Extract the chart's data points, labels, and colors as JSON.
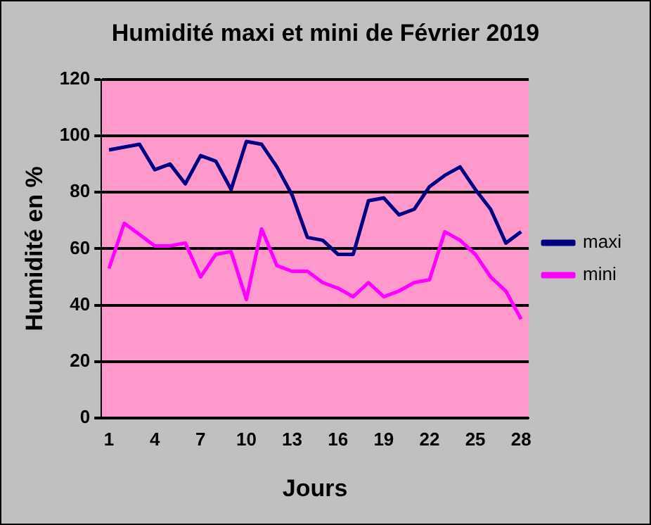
{
  "chart_data": {
    "type": "line",
    "title": "Humidité maxi et mini de Février 2019",
    "xlabel": "Jours",
    "ylabel": "Humidité en %",
    "categories": [
      "1",
      null,
      null,
      "4",
      null,
      null,
      "7",
      null,
      null,
      "10",
      null,
      null,
      "13",
      null,
      null,
      "16",
      null,
      null,
      "19",
      null,
      null,
      "22",
      null,
      null,
      "25",
      null,
      null,
      "28"
    ],
    "series": [
      {
        "name": "maxi",
        "color": "#000080",
        "values": [
          95,
          96,
          97,
          88,
          90,
          83,
          93,
          91,
          81,
          98,
          97,
          89,
          79,
          64,
          63,
          58,
          58,
          77,
          78,
          72,
          74,
          82,
          86,
          89,
          81,
          74,
          62,
          66
        ]
      },
      {
        "name": "mini",
        "color": "#ff00ff",
        "values": [
          53,
          69,
          65,
          61,
          61,
          62,
          50,
          58,
          59,
          42,
          67,
          54,
          52,
          52,
          48,
          46,
          43,
          48,
          43,
          45,
          48,
          49,
          66,
          63,
          58,
          50,
          45,
          35
        ]
      }
    ],
    "ylim": [
      0,
      120
    ],
    "yticks": [
      0,
      20,
      40,
      60,
      80,
      100,
      120
    ],
    "grid": "y",
    "legend": "right",
    "marker": "none",
    "line_style": "solid"
  }
}
